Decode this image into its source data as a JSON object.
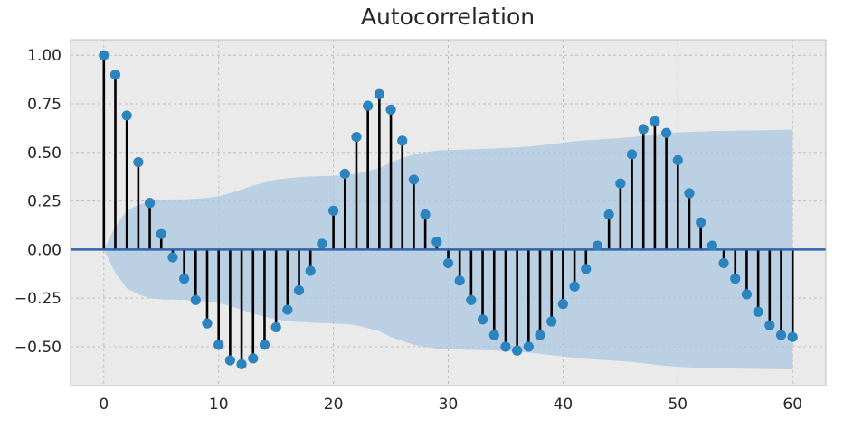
{
  "chart_data": {
    "type": "stem",
    "title": "Autocorrelation",
    "xlabel": "",
    "ylabel": "",
    "xlim": [
      -2.9,
      62.9
    ],
    "ylim": [
      -0.7,
      1.08
    ],
    "xticks": [
      0,
      10,
      20,
      30,
      40,
      50,
      60
    ],
    "yticks": [
      1.0,
      0.75,
      0.5,
      0.25,
      0.0,
      -0.25,
      -0.5
    ],
    "ytick_labels": [
      "1.00",
      "0.75",
      "0.50",
      "0.25",
      "0.00",
      "−0.25",
      "−0.50"
    ],
    "grid": true,
    "lags": [
      0,
      1,
      2,
      3,
      4,
      5,
      6,
      7,
      8,
      9,
      10,
      11,
      12,
      13,
      14,
      15,
      16,
      17,
      18,
      19,
      20,
      21,
      22,
      23,
      24,
      25,
      26,
      27,
      28,
      29,
      30,
      31,
      32,
      33,
      34,
      35,
      36,
      37,
      38,
      39,
      40,
      41,
      42,
      43,
      44,
      45,
      46,
      47,
      48,
      49,
      50,
      51,
      52,
      53,
      54,
      55,
      56,
      57,
      58,
      59,
      60
    ],
    "acf": [
      1.0,
      0.9,
      0.69,
      0.45,
      0.24,
      0.08,
      -0.04,
      -0.15,
      -0.26,
      -0.38,
      -0.49,
      -0.57,
      -0.59,
      -0.56,
      -0.49,
      -0.4,
      -0.31,
      -0.21,
      -0.11,
      0.03,
      0.2,
      0.39,
      0.58,
      0.74,
      0.8,
      0.72,
      0.56,
      0.36,
      0.18,
      0.04,
      -0.07,
      -0.16,
      -0.26,
      -0.36,
      -0.44,
      -0.5,
      -0.52,
      -0.5,
      -0.44,
      -0.37,
      -0.28,
      -0.19,
      -0.1,
      0.02,
      0.18,
      0.34,
      0.49,
      0.62,
      0.66,
      0.6,
      0.46,
      0.29,
      0.14,
      0.02,
      -0.07,
      -0.15,
      -0.23,
      -0.32,
      -0.39,
      -0.44,
      -0.45
    ],
    "confidence_band": {
      "lags": [
        0,
        1,
        2,
        3,
        4,
        5,
        6,
        7,
        8,
        9,
        10,
        11,
        12,
        13,
        14,
        15,
        16,
        17,
        18,
        19,
        20,
        21,
        22,
        23,
        24,
        25,
        26,
        27,
        28,
        29,
        30,
        31,
        32,
        33,
        34,
        35,
        36,
        37,
        38,
        39,
        40,
        41,
        42,
        43,
        44,
        45,
        46,
        47,
        48,
        49,
        50,
        51,
        52,
        53,
        54,
        55,
        56,
        57,
        58,
        59,
        60
      ],
      "upper": [
        0.0,
        0.12,
        0.2,
        0.23,
        0.25,
        0.256,
        0.258,
        0.259,
        0.262,
        0.266,
        0.275,
        0.29,
        0.31,
        0.33,
        0.345,
        0.36,
        0.368,
        0.373,
        0.376,
        0.378,
        0.38,
        0.383,
        0.39,
        0.405,
        0.42,
        0.45,
        0.47,
        0.49,
        0.5,
        0.51,
        0.512,
        0.514,
        0.516,
        0.518,
        0.52,
        0.523,
        0.526,
        0.53,
        0.536,
        0.543,
        0.55,
        0.557,
        0.562,
        0.566,
        0.57,
        0.574,
        0.578,
        0.585,
        0.592,
        0.598,
        0.603,
        0.606,
        0.608,
        0.61,
        0.611,
        0.612,
        0.613,
        0.614,
        0.615,
        0.616,
        0.617
      ]
    },
    "colors": {
      "stem": "#000000",
      "marker": "#2b83bf",
      "band": "#abc8e0",
      "zero_line": "#2f64ad",
      "plot_bg": "#eaeaea",
      "grid": "#bdbdbd"
    }
  }
}
